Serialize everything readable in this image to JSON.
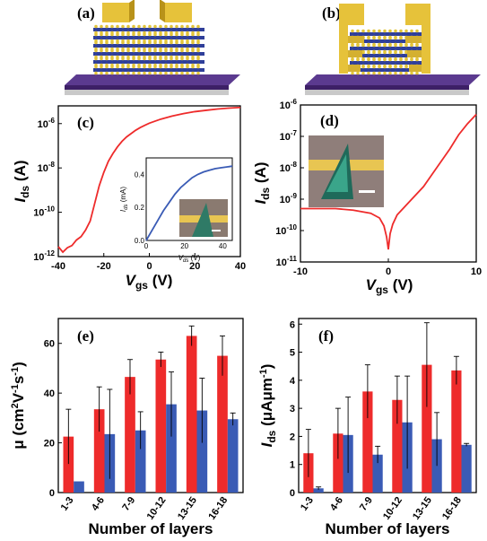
{
  "panels": {
    "a": {
      "label": "(a)"
    },
    "b": {
      "label": "(b)"
    }
  },
  "colors": {
    "red": "#ee2b2b",
    "blue": "#3a5bb5",
    "gold": "#e6c23a",
    "purple": "#5b3a8f",
    "substrate": "#c9c9c9"
  },
  "chart_data": [
    {
      "id": "c",
      "panel_label": "(c)",
      "type": "line",
      "ylabel": "I",
      "ylabel_sub": "ds",
      "ylabel_unit": "(A)",
      "xlabel": "V",
      "xlabel_sub": "gs",
      "xlabel_unit": "(V)",
      "xlim": [
        -40,
        40
      ],
      "ylog": true,
      "ylim_exp": [
        -12,
        -5.2
      ],
      "xticks": [
        "-40",
        "-20",
        "0",
        "20",
        "40"
      ],
      "yticks": [
        {
          "base": "10",
          "exp": "-12"
        },
        {
          "base": "10",
          "exp": "-10"
        },
        {
          "base": "10",
          "exp": "-8"
        },
        {
          "base": "10",
          "exp": "-6"
        }
      ],
      "series": [
        {
          "color": "#ee2b2b",
          "x": [
            -40,
            -38,
            -36,
            -34,
            -32,
            -30,
            -28,
            -26,
            -24,
            -22,
            -20,
            -18,
            -16,
            -14,
            -12,
            -10,
            -8,
            -6,
            -4,
            -2,
            0,
            5,
            10,
            15,
            20,
            25,
            30,
            35,
            40
          ],
          "y_exp": [
            -11.55,
            -11.8,
            -11.6,
            -11.5,
            -11.25,
            -11.1,
            -10.8,
            -10.4,
            -9.6,
            -8.8,
            -8.2,
            -7.7,
            -7.35,
            -7.05,
            -6.8,
            -6.6,
            -6.45,
            -6.3,
            -6.18,
            -6.08,
            -5.98,
            -5.8,
            -5.66,
            -5.55,
            -5.46,
            -5.4,
            -5.34,
            -5.3,
            -5.27
          ]
        }
      ],
      "inset": {
        "type": "line",
        "ylabel": "I",
        "ylabel_sub": "ds",
        "ylabel_unit": "(mA)",
        "xlabel": "V",
        "xlabel_sub": "ds",
        "xlabel_unit": "(V)",
        "xlim": [
          0,
          45
        ],
        "ylim": [
          0,
          0.5
        ],
        "xticks": [
          "0",
          "20",
          "40"
        ],
        "yticks": [
          "0.0",
          "0.2",
          "0.4"
        ],
        "series": [
          {
            "color": "#3a5bb5",
            "x": [
              0,
              3,
              6,
              9,
              12,
              15,
              18,
              21,
              24,
              27,
              30,
              33,
              36,
              39,
              42,
              45
            ],
            "y": [
              0,
              0.06,
              0.12,
              0.18,
              0.23,
              0.28,
              0.32,
              0.35,
              0.38,
              0.4,
              0.415,
              0.425,
              0.435,
              0.44,
              0.445,
              0.45
            ]
          }
        ]
      }
    },
    {
      "id": "d",
      "panel_label": "(d)",
      "type": "line",
      "ylabel": "I",
      "ylabel_sub": "ds",
      "ylabel_unit": "(A)",
      "xlabel": "V",
      "xlabel_sub": "gs",
      "xlabel_unit": "(V)",
      "xlim": [
        -10,
        10
      ],
      "ylog": true,
      "ylim_exp": [
        -11,
        -6
      ],
      "xticks": [
        "-10",
        "0",
        "10"
      ],
      "yticks": [
        {
          "base": "10",
          "exp": "-11"
        },
        {
          "base": "10",
          "exp": "-10"
        },
        {
          "base": "10",
          "exp": "-9"
        },
        {
          "base": "10",
          "exp": "-8"
        },
        {
          "base": "10",
          "exp": "-7"
        },
        {
          "base": "10",
          "exp": "-6"
        }
      ],
      "series": [
        {
          "color": "#ee2b2b",
          "x": [
            -10,
            -8,
            -6,
            -4,
            -2,
            -1,
            -0.5,
            -0.2,
            0,
            0.2,
            0.5,
            1,
            2,
            3,
            4,
            5,
            6,
            7,
            8,
            9,
            10
          ],
          "y_exp": [
            -9.3,
            -9.3,
            -9.3,
            -9.35,
            -9.45,
            -9.6,
            -9.85,
            -10.2,
            -10.6,
            -10.1,
            -9.8,
            -9.5,
            -9.2,
            -8.9,
            -8.6,
            -8.2,
            -7.8,
            -7.4,
            -6.95,
            -6.6,
            -6.3
          ]
        }
      ]
    },
    {
      "id": "e",
      "panel_label": "(e)",
      "type": "bar",
      "ylabel": "μ (cm",
      "ylabel_tail": "V",
      "ylabel_tail2": "s",
      "xlabel": "Number of layers",
      "categories": [
        "1-3",
        "4-6",
        "7-9",
        "10-12",
        "13-15",
        "16-18"
      ],
      "ylim": [
        0,
        70
      ],
      "yticks": [
        "0",
        "20",
        "40",
        "60"
      ],
      "series": [
        {
          "color": "#ee2b2b",
          "values": [
            22.5,
            33.5,
            46.5,
            53.5,
            63,
            55
          ],
          "errors": [
            11,
            9,
            7,
            3,
            4,
            8
          ]
        },
        {
          "color": "#3a5bb5",
          "values": [
            4.5,
            23.5,
            25,
            35.5,
            33,
            29.5
          ],
          "errors": [
            0,
            18,
            7.5,
            13,
            13,
            2.5
          ]
        }
      ]
    },
    {
      "id": "f",
      "panel_label": "(f)",
      "type": "bar",
      "ylabel": "I",
      "ylabel_sub": "ds",
      "ylabel_unit": "(μAμm",
      "xlabel": "Number of layers",
      "categories": [
        "1-3",
        "4-6",
        "7-9",
        "10-12",
        "13-15",
        "16-18"
      ],
      "ylim": [
        0,
        6.2
      ],
      "yticks": [
        "0",
        "1",
        "2",
        "3",
        "4",
        "5",
        "6"
      ],
      "series": [
        {
          "color": "#ee2b2b",
          "values": [
            1.4,
            2.1,
            3.6,
            3.3,
            4.55,
            4.35
          ],
          "errors": [
            0.85,
            0.9,
            0.95,
            0.85,
            1.5,
            0.5
          ]
        },
        {
          "color": "#3a5bb5",
          "values": [
            0.15,
            2.05,
            1.35,
            2.5,
            1.9,
            1.7
          ],
          "errors": [
            0.05,
            1.35,
            0.3,
            1.65,
            0.95,
            0.05
          ]
        }
      ]
    }
  ]
}
